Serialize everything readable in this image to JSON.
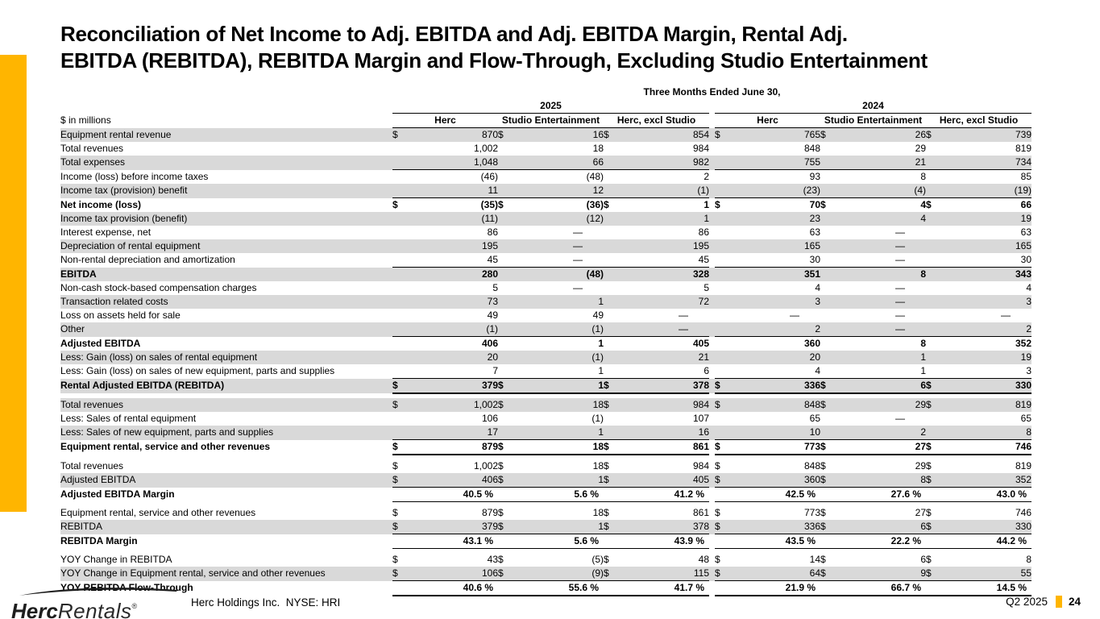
{
  "slide": {
    "title_line1": "Reconciliation of Net Income to Adj. EBITDA and Adj. EBITDA Margin, Rental Adj.",
    "title_line2": "EBITDA (REBITDA), REBITDA Margin and Flow-Through, Excluding Studio Entertainment",
    "accent_color": "#FFB500",
    "stripe_color": "#D9D9D9"
  },
  "table": {
    "period_header": "Three Months Ended June 30,",
    "year_groups": [
      "2025",
      "2024"
    ],
    "column_headers": [
      "Herc",
      "Studio Entertainment",
      "Herc, excl Studio"
    ],
    "units_label": "$ in millions",
    "rows": [
      {
        "label": "Equipment rental revenue",
        "gray": true,
        "dollars": true,
        "cells": [
          "870",
          "16",
          "854",
          "765",
          "26",
          "739"
        ]
      },
      {
        "label": "Total revenues",
        "cells": [
          "1,002",
          "18",
          "984",
          "848",
          "29",
          "819"
        ]
      },
      {
        "label": "Total expenses",
        "gray": true,
        "bb": true,
        "cells": [
          "1,048",
          "66",
          "982",
          "755",
          "21",
          "734"
        ]
      },
      {
        "label": "Income (loss) before income taxes",
        "cells": [
          "(46)",
          "(48)",
          "2",
          "93",
          "8",
          "85"
        ]
      },
      {
        "label": "Income tax (provision) benefit",
        "gray": true,
        "bb": true,
        "cells": [
          "11",
          "12",
          "(1)",
          "(23)",
          "(4)",
          "(19)"
        ]
      },
      {
        "label": "Net income (loss)",
        "bold": true,
        "dollars": true,
        "cells": [
          "(35)",
          "(36)",
          "1",
          "70",
          "4",
          "66"
        ]
      },
      {
        "label": "Income tax provision (benefit)",
        "gray": true,
        "cells": [
          "(11)",
          "(12)",
          "1",
          "23",
          "4",
          "19"
        ]
      },
      {
        "label": "Interest expense, net",
        "cells": [
          "86",
          "—",
          "86",
          "63",
          "—",
          "63"
        ]
      },
      {
        "label": "Depreciation of rental equipment",
        "gray": true,
        "cells": [
          "195",
          "—",
          "195",
          "165",
          "—",
          "165"
        ]
      },
      {
        "label": "Non-rental depreciation and amortization",
        "bb": true,
        "cells": [
          "45",
          "—",
          "45",
          "30",
          "—",
          "30"
        ]
      },
      {
        "label": "EBITDA",
        "gray": true,
        "bold": true,
        "cells": [
          "280",
          "(48)",
          "328",
          "351",
          "8",
          "343"
        ]
      },
      {
        "label": "Non-cash stock-based compensation charges",
        "cells": [
          "5",
          "—",
          "5",
          "4",
          "—",
          "4"
        ]
      },
      {
        "label": "Transaction related costs",
        "gray": true,
        "cells": [
          "73",
          "1",
          "72",
          "3",
          "—",
          "3"
        ]
      },
      {
        "label": "Loss on assets held for sale",
        "cells": [
          "49",
          "49",
          "—",
          "—",
          "—",
          "—"
        ]
      },
      {
        "label": "Other",
        "gray": true,
        "bb": true,
        "cells": [
          "(1)",
          "(1)",
          "—",
          "2",
          "—",
          "2"
        ]
      },
      {
        "label": "Adjusted EBITDA",
        "bold": true,
        "cells": [
          "406",
          "1",
          "405",
          "360",
          "8",
          "352"
        ]
      },
      {
        "label": "Less: Gain (loss) on sales of rental equipment",
        "gray": true,
        "cells": [
          "20",
          "(1)",
          "21",
          "20",
          "1",
          "19"
        ]
      },
      {
        "label": "Less: Gain (loss) on sales of new equipment, parts and supplies",
        "bb": true,
        "cells": [
          "7",
          "1",
          "6",
          "4",
          "1",
          "3"
        ]
      },
      {
        "label": "Rental Adjusted EBITDA (REBITDA)",
        "gray": true,
        "bold": true,
        "dollars": true,
        "bb": true,
        "thick": true,
        "cells": [
          "379",
          "1",
          "378",
          "336",
          "6",
          "330"
        ]
      },
      {
        "label": "Total revenues",
        "gray": true,
        "gap_before": true,
        "dollars": true,
        "cells": [
          "1,002",
          "18",
          "984",
          "848",
          "29",
          "819"
        ]
      },
      {
        "label": "Less: Sales of rental equipment",
        "cells": [
          "106",
          "(1)",
          "107",
          "65",
          "—",
          "65"
        ]
      },
      {
        "label": "Less: Sales of new equipment, parts and supplies",
        "gray": true,
        "bb": true,
        "cells": [
          "17",
          "1",
          "16",
          "10",
          "2",
          "8"
        ]
      },
      {
        "label": "Equipment rental, service and other revenues",
        "bold": true,
        "dollars": true,
        "bb": true,
        "thick": true,
        "cells": [
          "879",
          "18",
          "861",
          "773",
          "27",
          "746"
        ]
      },
      {
        "label": "Total revenues",
        "gap_before": true,
        "dollars": true,
        "cells": [
          "1,002",
          "18",
          "984",
          "848",
          "29",
          "819"
        ]
      },
      {
        "label": "Adjusted EBITDA",
        "gray": true,
        "dollars": true,
        "bb": true,
        "cells": [
          "406",
          "1",
          "405",
          "360",
          "8",
          "352"
        ]
      },
      {
        "label": "Adjusted EBITDA Margin",
        "bold": true,
        "pct": true,
        "bb": true,
        "cells": [
          "40.5 %",
          "5.6 %",
          "41.2 %",
          "42.5 %",
          "27.6 %",
          "43.0 %"
        ]
      },
      {
        "label": "Equipment rental, service and other revenues",
        "gap_before": true,
        "dollars": true,
        "cells": [
          "879",
          "18",
          "861",
          "773",
          "27",
          "746"
        ]
      },
      {
        "label": "REBITDA",
        "gray": true,
        "dollars": true,
        "bb": true,
        "cells": [
          "379",
          "1",
          "378",
          "336",
          "6",
          "330"
        ]
      },
      {
        "label": "REBITDA Margin",
        "bold": true,
        "pct": true,
        "bb": true,
        "cells": [
          "43.1 %",
          "5.6 %",
          "43.9 %",
          "43.5 %",
          "22.2 %",
          "44.2 %"
        ]
      },
      {
        "label": "YOY Change in REBITDA",
        "gap_before": true,
        "dollars": true,
        "cells": [
          "43",
          "(5)",
          "48",
          "14",
          "6",
          "8"
        ]
      },
      {
        "label": "YOY Change in Equipment rental, service and other revenues",
        "gray": true,
        "dollars": true,
        "bb": true,
        "cells": [
          "106",
          "(9)",
          "115",
          "64",
          "9",
          "55"
        ]
      },
      {
        "label": "YOY REBITDA Flow-Through",
        "bold": true,
        "pct": true,
        "bb": true,
        "thick": true,
        "cells": [
          "40.6 %",
          "55.6 %",
          "41.7 %",
          "21.9 %",
          "66.7 %",
          "14.5 %"
        ]
      }
    ]
  },
  "footer": {
    "logo_herc": "Herc",
    "logo_rentals": "Rentals",
    "logo_reg": "®",
    "company": "Herc Holdings Inc.  NYSE: HRI",
    "period": "Q2 2025",
    "page": "24"
  }
}
